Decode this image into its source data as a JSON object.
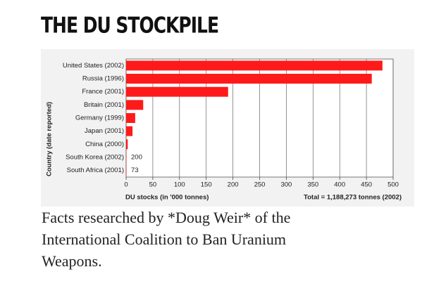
{
  "header": {
    "title": "THE DU STOCKPILE"
  },
  "chart_data": {
    "type": "bar",
    "orientation": "horizontal",
    "categories": [
      "United States (2002)",
      "Russia (1996)",
      "France (2001)",
      "Britain (2001)",
      "Germany (1999)",
      "Japan (2001)",
      "China (2000)",
      "South Korea (2002)",
      "South Africa (2001)"
    ],
    "values": [
      480,
      460,
      191,
      32,
      17,
      12,
      3,
      0.2,
      0.073
    ],
    "value_labels": [
      null,
      null,
      null,
      null,
      null,
      null,
      null,
      "200",
      "73"
    ],
    "color": "#ff1a1a",
    "xlim": [
      0,
      500
    ],
    "xticks": [
      0,
      50,
      100,
      150,
      200,
      250,
      300,
      350,
      400,
      450,
      500
    ],
    "grid": true,
    "xlabel": "DU stocks (in '000 tonnes)",
    "ylabel": "Country (date reported)",
    "annotation": "Total = 1,188,273 tonnes (2002)"
  },
  "caption": {
    "lines": [
      "Facts researched by *Doug Weir* of the",
      "International Coalition to Ban Uranium",
      "Weapons."
    ]
  }
}
